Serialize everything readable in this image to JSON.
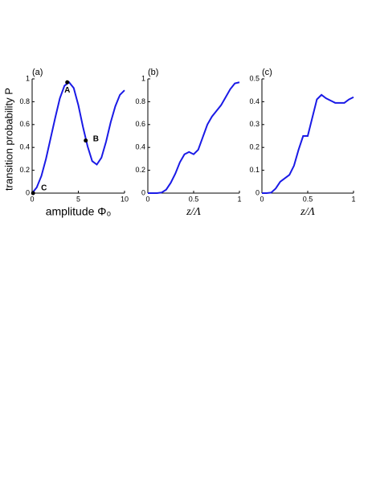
{
  "chart_data": [
    {
      "type": "line",
      "panel_label": "(a)",
      "ylabel": "transition probability P",
      "xlabel": "amplitude Φ₀",
      "color": "#1a1ae6",
      "x": [
        0,
        0.5,
        1,
        1.5,
        2,
        2.5,
        3,
        3.5,
        4,
        4.5,
        5,
        5.5,
        6,
        6.5,
        7,
        7.5,
        8,
        8.5,
        9,
        9.5,
        10
      ],
      "values": [
        0,
        0.05,
        0.15,
        0.3,
        0.48,
        0.66,
        0.83,
        0.94,
        0.97,
        0.92,
        0.77,
        0.58,
        0.41,
        0.28,
        0.25,
        0.31,
        0.45,
        0.62,
        0.76,
        0.86,
        0.9
      ],
      "xlim": [
        0,
        10
      ],
      "ylim": [
        0,
        1
      ],
      "xticks": [
        0,
        5,
        10
      ],
      "yticks": [
        0,
        0.2,
        0.4,
        0.6,
        0.8,
        1
      ],
      "annotations": [
        {
          "text": "A",
          "x": 3.8,
          "y": 0.97
        },
        {
          "text": "B",
          "x": 5.8,
          "y": 0.46
        },
        {
          "text": "C",
          "x": 0.1,
          "y": 0
        }
      ]
    },
    {
      "type": "line",
      "panel_label": "(b)",
      "xlabel": "z/Λ",
      "color": "#1a1ae6",
      "x": [
        0,
        0.05,
        0.1,
        0.15,
        0.2,
        0.25,
        0.3,
        0.35,
        0.4,
        0.45,
        0.5,
        0.55,
        0.6,
        0.65,
        0.7,
        0.75,
        0.8,
        0.85,
        0.9,
        0.95,
        1
      ],
      "values": [
        0,
        0,
        0,
        0.005,
        0.03,
        0.09,
        0.17,
        0.27,
        0.34,
        0.36,
        0.34,
        0.38,
        0.49,
        0.6,
        0.67,
        0.72,
        0.77,
        0.84,
        0.91,
        0.96,
        0.97
      ],
      "xlim": [
        0,
        1
      ],
      "ylim": [
        0,
        1
      ],
      "xticks": [
        0,
        0.5,
        1
      ],
      "yticks": [
        0,
        0.2,
        0.4,
        0.6,
        0.8,
        1
      ]
    },
    {
      "type": "line",
      "panel_label": "(c)",
      "xlabel": "z/Λ",
      "color": "#1a1ae6",
      "x": [
        0,
        0.05,
        0.1,
        0.15,
        0.2,
        0.25,
        0.3,
        0.35,
        0.4,
        0.45,
        0.5,
        0.55,
        0.6,
        0.65,
        0.7,
        0.75,
        0.8,
        0.85,
        0.9,
        0.95,
        1
      ],
      "values": [
        0,
        0,
        0.002,
        0.02,
        0.05,
        0.065,
        0.08,
        0.12,
        0.19,
        0.25,
        0.25,
        0.33,
        0.41,
        0.43,
        0.415,
        0.405,
        0.395,
        0.395,
        0.395,
        0.41,
        0.42
      ],
      "xlim": [
        0,
        1
      ],
      "ylim": [
        0,
        0.5
      ],
      "xticks": [
        0,
        0.5,
        1
      ],
      "yticks": [
        0,
        0.1,
        0.2,
        0.3,
        0.4,
        0.5
      ]
    }
  ]
}
